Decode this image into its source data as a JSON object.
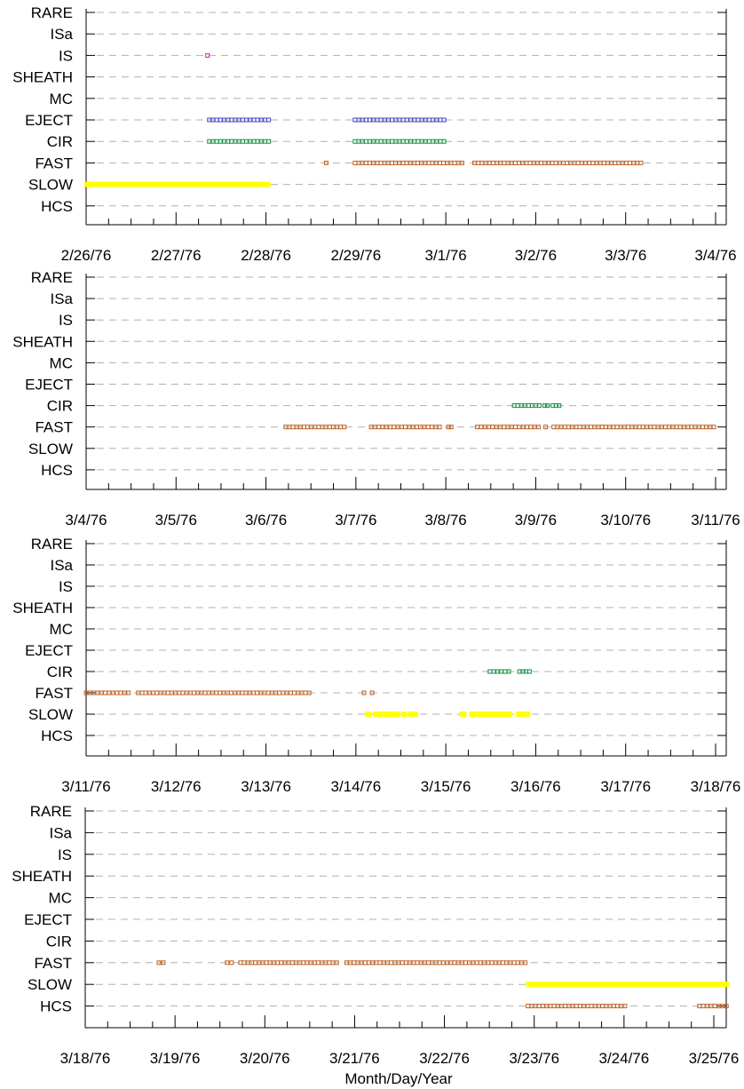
{
  "chart_data": {
    "type": "scatter",
    "xlabel": "Month/Day/Year",
    "ylabel": "",
    "categories": [
      "HCS",
      "SLOW",
      "FAST",
      "CIR",
      "EJECT",
      "MC",
      "SHEATH",
      "IS",
      "ISa",
      "RARE"
    ],
    "colors": {
      "IS": "#c020c0",
      "EJECT": "#4040c0",
      "CIR": "#109040",
      "FAST": "#c06020",
      "SLOW": "#ffff00",
      "HCS": "#c06020"
    },
    "panels": [
      {
        "ticks": [
          "2/26/76",
          "2/27/76",
          "2/28/76",
          "2/29/76",
          "3/1/76",
          "3/2/76",
          "3/3/76",
          "3/4/76"
        ],
        "xlim": [
          0,
          7
        ],
        "intervals": [
          {
            "cat": "IS",
            "start": 1.35,
            "end": 1.35
          },
          {
            "cat": "EJECT",
            "start": 1.37,
            "end": 2.03
          },
          {
            "cat": "EJECT",
            "start": 2.99,
            "end": 3.98
          },
          {
            "cat": "CIR",
            "start": 1.37,
            "end": 2.03
          },
          {
            "cat": "CIR",
            "start": 2.99,
            "end": 3.98
          },
          {
            "cat": "FAST",
            "start": 2.67,
            "end": 2.67
          },
          {
            "cat": "FAST",
            "start": 2.99,
            "end": 4.18
          },
          {
            "cat": "FAST",
            "start": 4.32,
            "end": 6.17
          },
          {
            "cat": "SLOW",
            "start": 0.0,
            "end": 2.03
          }
        ]
      },
      {
        "ticks": [
          "3/4/76",
          "3/5/76",
          "3/6/76",
          "3/7/76",
          "3/8/76",
          "3/9/76",
          "3/10/76",
          "3/11/76"
        ],
        "xlim": [
          0,
          7
        ],
        "intervals": [
          {
            "cat": "CIR",
            "start": 4.76,
            "end": 5.04
          },
          {
            "cat": "CIR",
            "start": 5.1,
            "end": 5.13
          },
          {
            "cat": "CIR",
            "start": 5.19,
            "end": 5.26
          },
          {
            "cat": "FAST",
            "start": 2.22,
            "end": 2.87
          },
          {
            "cat": "FAST",
            "start": 3.17,
            "end": 3.93
          },
          {
            "cat": "FAST",
            "start": 4.03,
            "end": 4.06
          },
          {
            "cat": "FAST",
            "start": 4.35,
            "end": 5.03
          },
          {
            "cat": "FAST",
            "start": 5.11,
            "end": 5.13
          },
          {
            "cat": "FAST",
            "start": 5.2,
            "end": 6.98
          }
        ]
      },
      {
        "ticks": [
          "3/11/76",
          "3/12/76",
          "3/13/76",
          "3/14/76",
          "3/15/76",
          "3/16/76",
          "3/17/76",
          "3/18/76"
        ],
        "xlim": [
          0,
          7
        ],
        "intervals": [
          {
            "cat": "CIR",
            "start": 4.49,
            "end": 4.7
          },
          {
            "cat": "CIR",
            "start": 4.82,
            "end": 4.93
          },
          {
            "cat": "FAST",
            "start": 0.0,
            "end": 0.47
          },
          {
            "cat": "FAST",
            "start": 0.58,
            "end": 2.48
          },
          {
            "cat": "FAST",
            "start": 3.09,
            "end": 3.11
          },
          {
            "cat": "FAST",
            "start": 3.18,
            "end": 3.2
          },
          {
            "cat": "SLOW",
            "start": 3.12,
            "end": 3.15
          },
          {
            "cat": "SLOW",
            "start": 3.21,
            "end": 3.47
          },
          {
            "cat": "SLOW",
            "start": 3.52,
            "end": 3.55
          },
          {
            "cat": "SLOW",
            "start": 3.6,
            "end": 3.67
          },
          {
            "cat": "SLOW",
            "start": 4.17,
            "end": 4.21
          },
          {
            "cat": "SLOW",
            "start": 4.28,
            "end": 4.72
          },
          {
            "cat": "SLOW",
            "start": 4.8,
            "end": 4.92
          }
        ]
      },
      {
        "ticks": [
          "3/18/76",
          "3/19/76",
          "3/20/76",
          "3/21/76",
          "3/22/76",
          "3/23/76",
          "3/24/76",
          "3/25/76"
        ],
        "xlim": [
          0,
          7.15
        ],
        "intervals": [
          {
            "cat": "FAST",
            "start": 0.82,
            "end": 0.87
          },
          {
            "cat": "FAST",
            "start": 1.58,
            "end": 1.63
          },
          {
            "cat": "FAST",
            "start": 1.73,
            "end": 2.8
          },
          {
            "cat": "FAST",
            "start": 2.91,
            "end": 4.9
          },
          {
            "cat": "SLOW",
            "start": 4.93,
            "end": 7.15
          },
          {
            "cat": "HCS",
            "start": 4.93,
            "end": 6.01
          },
          {
            "cat": "HCS",
            "start": 6.84,
            "end": 7.14
          }
        ]
      }
    ]
  }
}
